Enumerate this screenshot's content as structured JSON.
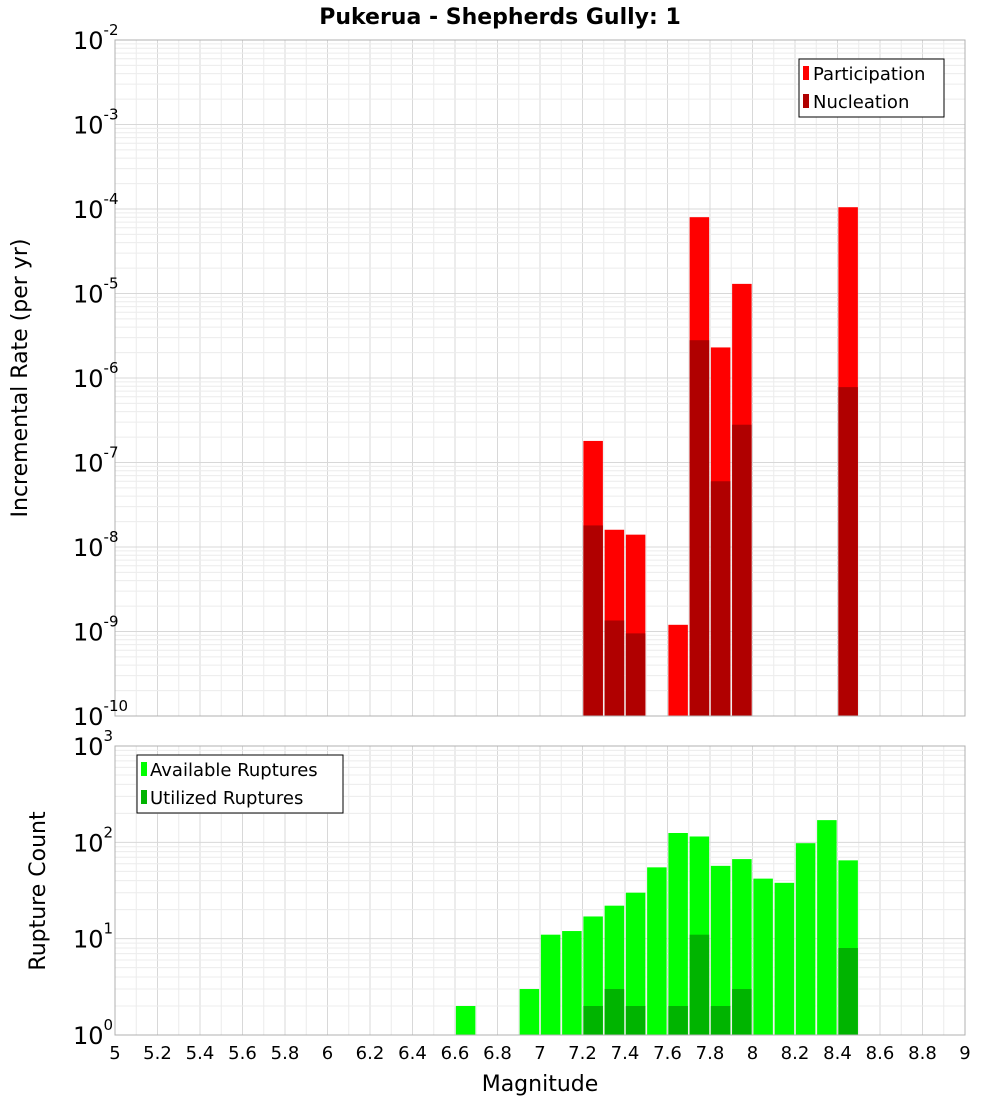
{
  "chart_data": [
    {
      "type": "bar",
      "title": "Pukerua - Shepherds Gully: 1",
      "xlabel": "",
      "ylabel": "Incremental Rate (per yr)",
      "yscale": "log",
      "ylim_exponents": [
        -10,
        -2
      ],
      "xlim": [
        5,
        9
      ],
      "grid": true,
      "legend_position": "top-right",
      "series": [
        {
          "name": "Participation",
          "color": "#ff0000",
          "x": [
            7.25,
            7.35,
            7.45,
            7.65,
            7.75,
            7.85,
            7.95,
            8.45
          ],
          "values": [
            1.8e-07,
            1.6e-08,
            1.4e-08,
            1.2e-09,
            8e-05,
            2.3e-06,
            1.3e-05,
            0.000105
          ]
        },
        {
          "name": "Nucleation",
          "color": "#b00000",
          "x": [
            7.25,
            7.35,
            7.45,
            7.75,
            7.85,
            7.95,
            8.45
          ],
          "values": [
            1.8e-08,
            1.35e-09,
            9.5e-10,
            2.8e-06,
            6e-08,
            2.8e-07,
            7.8e-07
          ]
        }
      ]
    },
    {
      "type": "bar",
      "title": "",
      "xlabel": "Magnitude",
      "ylabel": "Rupture Count",
      "yscale": "log",
      "ylim_exponents": [
        0,
        3
      ],
      "xlim": [
        5,
        9
      ],
      "x_ticks": [
        "5",
        "5.2",
        "5.4",
        "5.6",
        "5.8",
        "6",
        "6.2",
        "6.4",
        "6.6",
        "6.8",
        "7",
        "7.2",
        "7.4",
        "7.6",
        "7.8",
        "8",
        "8.2",
        "8.4",
        "8.6",
        "8.8",
        "9"
      ],
      "grid": true,
      "legend_position": "top-left",
      "series": [
        {
          "name": "Available Ruptures",
          "color": "#00ff00",
          "x": [
            6.25,
            6.65,
            6.75,
            6.85,
            6.95,
            7.05,
            7.15,
            7.25,
            7.35,
            7.45,
            7.55,
            7.65,
            7.75,
            7.85,
            7.95,
            8.05,
            8.15,
            8.25,
            8.35,
            8.45
          ],
          "values": [
            1,
            2,
            1,
            1,
            3,
            11,
            12,
            17,
            22,
            30,
            55,
            125,
            115,
            57,
            67,
            42,
            38,
            98,
            170,
            65
          ]
        },
        {
          "name": "Utilized Ruptures",
          "color": "#00b400",
          "x": [
            7.25,
            7.35,
            7.45,
            7.65,
            7.75,
            7.85,
            7.95,
            8.05,
            8.45
          ],
          "values": [
            2,
            3,
            2,
            2,
            11,
            2,
            3,
            1,
            8
          ]
        }
      ]
    }
  ]
}
